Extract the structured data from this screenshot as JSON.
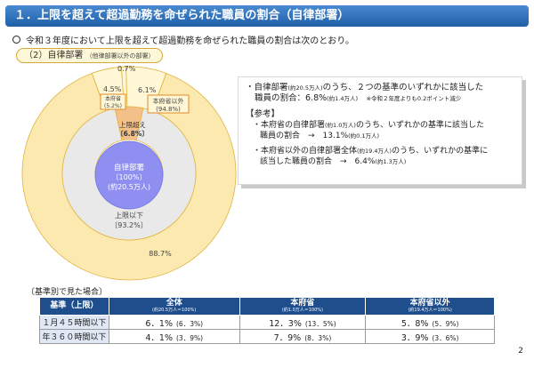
{
  "title": "１．上限を超えて超過勤務を命ぜられた職員の割合（自律部署）",
  "intro": "令和３年度において上限を超えて超過勤務を命ぜられた職員の割合は次のとおり。",
  "section": {
    "label": "（2）自律部署",
    "note": "（他律部署以外の部署）"
  },
  "chart_data": {
    "type": "pie",
    "title": "",
    "outer_ring": {
      "slices": [
        {
          "label": "上限以下（〃）",
          "value": 88.7,
          "text": "88.7%"
        },
        {
          "label": "本府省以外",
          "value": 6.1,
          "text": "6.1%"
        },
        {
          "label": "本府省",
          "value": 4.5,
          "text": "4.5%"
        },
        {
          "label": "",
          "value": 0.7,
          "text": "0.7%"
        }
      ]
    },
    "inner_ring": {
      "slices": [
        {
          "label": "上限以下",
          "value": 93.2,
          "text": "上限以下 〔93.2%〕"
        },
        {
          "label": "上限超え",
          "value": 6.8,
          "text": "上限超え 〔6.8%〕"
        }
      ]
    },
    "center": {
      "line1": "自律部署",
      "line2": "〔100%〕",
      "line3": "(約20.5万人)"
    },
    "callouts": {
      "honfusho": {
        "line1": "本府省",
        "line2": "(5.2%)"
      },
      "igai": {
        "line1": "本府省以外",
        "line2": "(94.8%)"
      }
    },
    "labels": {
      "outer_lower": "88.7%",
      "outer_6_1": "6.1%",
      "outer_4_5": "4.5%",
      "outer_0_7": "0.7%",
      "inner_lower_1": "上限以下",
      "inner_lower_2": "〔93.2%〕",
      "inner_upper_1": "上限超え",
      "inner_upper_2": "〔6.8%〕"
    },
    "colors": {
      "outer_lower": "#fbe9b0",
      "outer_upper": "#fff7d6",
      "inner_lower": "#e9e9e9",
      "inner_upper": "#f4c08a",
      "center": "#8f8ff2",
      "callout_border": "#e08a2a",
      "outline": "#e0b540"
    }
  },
  "infobox": {
    "line1a": "・自律部署",
    "line1small": "(約20.5万人)",
    "line1b": "のうち、２つの基準のいずれかに該当した",
    "line2a": "職員の割合：6.8%",
    "line2small": "(約1.4万人)",
    "line2note": "※令和２年度よりも0.2ポイント減少",
    "ref": "【参考】",
    "r1a": "・本府省の自律部署",
    "r1small": "(約1.0万人)",
    "r1b": "のうち、いずれかの基準に該当した",
    "r1c": "職員の割合　→　13.1%",
    "r1csmall": "(約0.1万人)",
    "r2a": "・本府省以外の自律部署全体",
    "r2small": "(約19.4万人)",
    "r2b": "のうち、いずれかの基準に",
    "r2c": "該当した職員の割合　→　6.4%",
    "r2csmall": "(約1.3万人)"
  },
  "basis_label": "〔基準別で見た場合〕",
  "table": {
    "headers": [
      {
        "label": "基準（上限）",
        "sub": ""
      },
      {
        "label": "全体",
        "sub": "(約20.5万人＝100%)"
      },
      {
        "label": "本府省",
        "sub": "(約1.0万人＝100%)"
      },
      {
        "label": "本府省以外",
        "sub": "(約19.4万人＝100%)"
      }
    ],
    "rows": [
      {
        "basis": "１月４５時間以下",
        "c1": "6．1%",
        "c1n": "(6．3%)",
        "c2": "12．3%",
        "c2n": "(13．5%)",
        "c3": "5．8%",
        "c3n": "(5．9%)"
      },
      {
        "basis": "年３６０時間以下",
        "c1": "4．1%",
        "c1n": "(3．9%)",
        "c2": "7．9%",
        "c2n": "(8．3%)",
        "c3": "3．9%",
        "c3n": "(3．6%)"
      }
    ]
  },
  "page_number": "2"
}
